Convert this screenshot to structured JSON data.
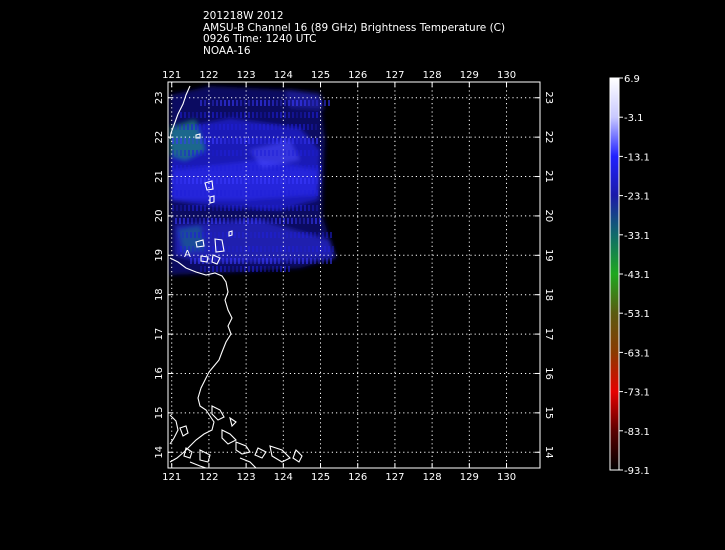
{
  "header": {
    "line1": "201218W 2012",
    "line2": "AMSU-B Channel 16 (89 GHz) Brightness Temperature (C)",
    "line3": "0926 Time: 1240 UTC",
    "line4": "NOAA-16"
  },
  "map": {
    "lon_labels": [
      "121",
      "122",
      "123",
      "124",
      "125",
      "126",
      "127",
      "128",
      "129",
      "130"
    ],
    "lat_labels": [
      "14",
      "15",
      "16",
      "17",
      "18",
      "19",
      "20",
      "21",
      "22",
      "23"
    ],
    "lon_range": [
      120.9,
      130.9
    ],
    "lat_range": [
      13.6,
      23.4
    ],
    "grid": true,
    "storm_marker": "A"
  },
  "colorbar": {
    "labels": [
      "6.9",
      "-3.1",
      "-13.1",
      "-23.1",
      "-33.1",
      "-43.1",
      "-53.1",
      "-63.1",
      "-73.1",
      "-83.1",
      "-93.1"
    ],
    "colors": [
      "#ffffff",
      "#c8c8ff",
      "#2020ff",
      "#1a1aa8",
      "#0f6a6a",
      "#1ea81e",
      "#5a5a10",
      "#8a3a00",
      "#e60000",
      "#5a0000",
      "#000000"
    ]
  }
}
